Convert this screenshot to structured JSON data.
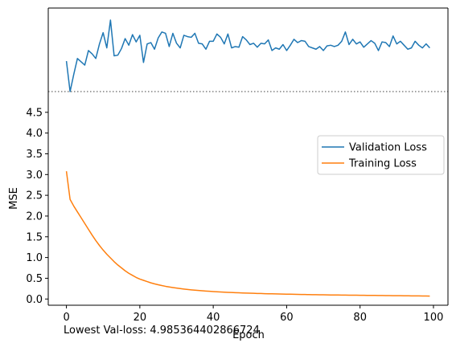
{
  "chart_data": {
    "type": "line",
    "xlabel": "Epoch",
    "ylabel": "MSE",
    "xlim": [
      -4.95,
      103.95
    ],
    "ylim": [
      -0.15,
      5.0
    ],
    "x_ticks": [
      0,
      20,
      40,
      60,
      80,
      100
    ],
    "y_ticks": [
      0.0,
      0.5,
      1.0,
      1.5,
      2.0,
      2.5,
      3.0,
      3.5,
      4.0,
      4.5
    ],
    "y_break_level": 4.985364402866724,
    "legend_position": "center-right",
    "footer_text": "Lowest Val-loss: 4.985364402866724",
    "series": [
      {
        "name": "Validation Loss",
        "color": "#1f77b4",
        "axis": "upper-broken",
        "x": [
          0,
          1,
          2,
          3,
          4,
          5,
          6,
          7,
          8,
          9,
          10,
          11,
          12,
          13,
          14,
          15,
          16,
          17,
          18,
          19,
          20,
          21,
          22,
          23,
          24,
          25,
          26,
          27,
          28,
          29,
          30,
          31,
          32,
          33,
          34,
          35,
          36,
          37,
          38,
          39,
          40,
          41,
          42,
          43,
          44,
          45,
          46,
          47,
          48,
          49,
          50,
          51,
          52,
          53,
          54,
          55,
          56,
          57,
          58,
          59,
          60,
          61,
          62,
          63,
          64,
          65,
          66,
          67,
          68,
          69,
          70,
          71,
          72,
          73,
          74,
          75,
          76,
          77,
          78,
          79,
          80,
          81,
          82,
          83,
          84,
          85,
          86,
          87,
          88,
          89,
          90,
          91,
          92,
          93,
          94,
          95,
          96,
          97,
          98,
          99
        ],
        "values": [
          0.46,
          0.0,
          0.26,
          0.5,
          0.45,
          0.4,
          0.62,
          0.57,
          0.5,
          0.72,
          0.89,
          0.66,
          1.08,
          0.54,
          0.55,
          0.65,
          0.8,
          0.7,
          0.86,
          0.75,
          0.85,
          0.44,
          0.72,
          0.74,
          0.64,
          0.81,
          0.9,
          0.88,
          0.68,
          0.88,
          0.73,
          0.66,
          0.85,
          0.83,
          0.82,
          0.88,
          0.73,
          0.72,
          0.64,
          0.76,
          0.76,
          0.87,
          0.82,
          0.72,
          0.87,
          0.66,
          0.68,
          0.67,
          0.83,
          0.78,
          0.71,
          0.73,
          0.67,
          0.73,
          0.72,
          0.78,
          0.62,
          0.66,
          0.64,
          0.71,
          0.62,
          0.7,
          0.79,
          0.74,
          0.77,
          0.76,
          0.68,
          0.66,
          0.64,
          0.68,
          0.62,
          0.69,
          0.7,
          0.68,
          0.7,
          0.76,
          0.9,
          0.71,
          0.79,
          0.72,
          0.75,
          0.67,
          0.72,
          0.77,
          0.73,
          0.62,
          0.75,
          0.74,
          0.68,
          0.84,
          0.72,
          0.76,
          0.7,
          0.64,
          0.66,
          0.76,
          0.7,
          0.66,
          0.72,
          0.66
        ]
      },
      {
        "name": "Training Loss",
        "color": "#ff7f0e",
        "axis": "lower",
        "x": [
          0,
          1,
          2,
          3,
          4,
          5,
          6,
          7,
          8,
          9,
          10,
          11,
          12,
          13,
          14,
          15,
          16,
          17,
          18,
          19,
          20,
          21,
          22,
          23,
          24,
          25,
          26,
          27,
          28,
          29,
          30,
          31,
          32,
          33,
          34,
          35,
          36,
          37,
          38,
          39,
          40,
          41,
          42,
          43,
          44,
          45,
          46,
          47,
          48,
          49,
          50,
          51,
          52,
          53,
          54,
          55,
          56,
          57,
          58,
          59,
          60,
          61,
          62,
          63,
          64,
          65,
          66,
          67,
          68,
          69,
          70,
          71,
          72,
          73,
          74,
          75,
          76,
          77,
          78,
          79,
          80,
          81,
          82,
          83,
          84,
          85,
          86,
          87,
          88,
          89,
          90,
          91,
          92,
          93,
          94,
          95,
          96,
          97,
          98,
          99
        ],
        "values": [
          3.08,
          2.4,
          2.24,
          2.1,
          1.96,
          1.82,
          1.68,
          1.54,
          1.41,
          1.29,
          1.18,
          1.08,
          0.99,
          0.9,
          0.82,
          0.75,
          0.68,
          0.62,
          0.57,
          0.52,
          0.48,
          0.45,
          0.42,
          0.39,
          0.366,
          0.344,
          0.324,
          0.306,
          0.29,
          0.276,
          0.263,
          0.251,
          0.24,
          0.23,
          0.221,
          0.213,
          0.205,
          0.198,
          0.192,
          0.186,
          0.18,
          0.175,
          0.17,
          0.165,
          0.161,
          0.157,
          0.153,
          0.149,
          0.146,
          0.143,
          0.14,
          0.137,
          0.134,
          0.132,
          0.129,
          0.127,
          0.125,
          0.123,
          0.121,
          0.119,
          0.117,
          0.115,
          0.113,
          0.112,
          0.11,
          0.108,
          0.107,
          0.105,
          0.104,
          0.102,
          0.101,
          0.1,
          0.098,
          0.097,
          0.096,
          0.095,
          0.094,
          0.093,
          0.092,
          0.091,
          0.09,
          0.089,
          0.088,
          0.087,
          0.086,
          0.085,
          0.084,
          0.083,
          0.082,
          0.081,
          0.08,
          0.079,
          0.078,
          0.077,
          0.076,
          0.075,
          0.074,
          0.073,
          0.072,
          0.071
        ]
      }
    ]
  }
}
